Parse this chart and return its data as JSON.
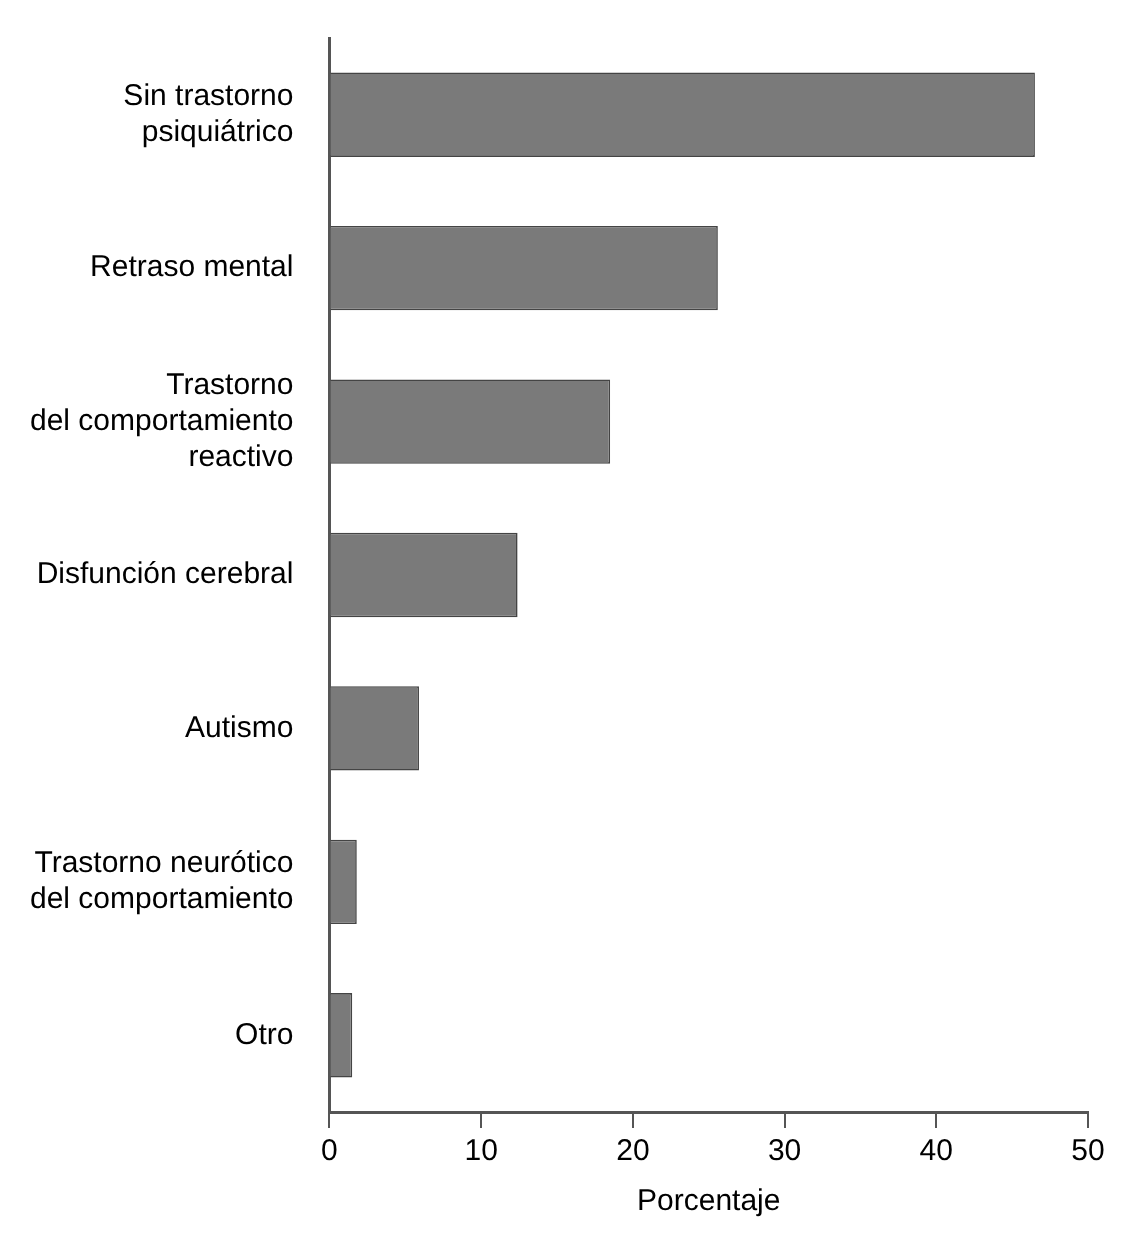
{
  "chart_data": {
    "type": "bar",
    "orientation": "horizontal",
    "xlabel": "Porcentaje",
    "categories": [
      "Sin trastorno\npsiquiátrico",
      "Retraso mental",
      "Trastorno\ndel comportamiento\nreactivo",
      "Disfunción cerebral",
      "Autismo",
      "Trastorno neurótico\ndel comportamiento",
      "Otro"
    ],
    "values": [
      46.5,
      25.6,
      18.5,
      12.4,
      5.9,
      1.8,
      1.5
    ],
    "color": "#7a7a7a",
    "xlim": [
      0,
      50
    ],
    "xticks": [
      0,
      10,
      20,
      30,
      40,
      50
    ],
    "grid": false,
    "legend": false
  }
}
